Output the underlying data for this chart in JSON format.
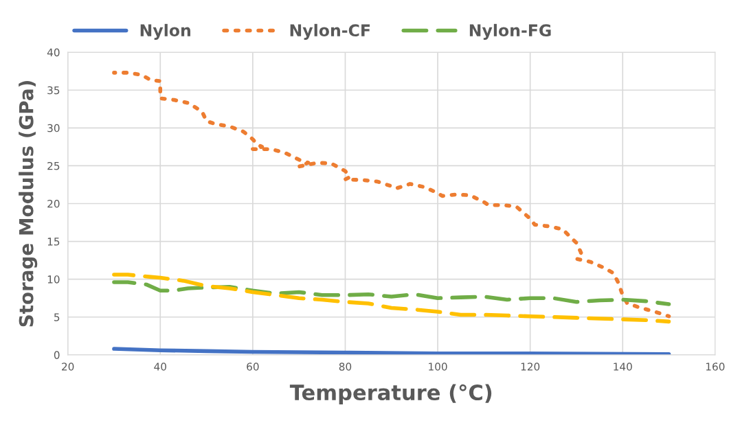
{
  "chart_data": {
    "type": "line",
    "xlabel": "Temperature (°C)",
    "ylabel": "Storage Modulus (GPa)",
    "xlim": [
      20,
      160
    ],
    "xticks": [
      20,
      40,
      60,
      80,
      100,
      120,
      140,
      160
    ],
    "ylim": [
      0,
      40
    ],
    "yticks": [
      0,
      5,
      10,
      15,
      20,
      25,
      30,
      35,
      40
    ],
    "grid": true,
    "legend": "top",
    "marker": "none",
    "series": [
      {
        "name": "Nylon",
        "color": "#4472c4",
        "line_style": "solid",
        "x": [
          30,
          40,
          50,
          60,
          80,
          100,
          120,
          150
        ],
        "values": [
          0.8,
          0.6,
          0.5,
          0.4,
          0.3,
          0.2,
          0.2,
          0.1
        ]
      },
      {
        "name": "Nylon-CF",
        "color": "#ed7d31",
        "line_style": "dotted",
        "x": [
          30,
          33,
          36,
          38,
          40,
          40,
          40,
          43,
          46,
          49,
          50,
          52,
          55,
          58,
          60,
          61,
          62,
          60,
          64,
          67,
          70,
          72,
          70,
          74,
          77,
          80,
          81,
          80,
          84,
          87,
          90,
          91,
          94,
          97,
          100,
          101,
          104,
          107,
          110,
          111,
          114,
          117,
          120,
          121,
          124,
          127,
          130,
          131,
          130,
          133,
          136,
          138,
          139,
          140,
          141,
          144,
          147,
          150
        ],
        "values": [
          37.3,
          37.3,
          37.0,
          36.3,
          36.2,
          34.8,
          33.9,
          33.7,
          33.3,
          32.2,
          30.9,
          30.5,
          30.2,
          29.5,
          28.5,
          27.8,
          27.5,
          27.2,
          27.2,
          26.7,
          25.8,
          25.4,
          24.9,
          25.4,
          25.3,
          24.3,
          23.5,
          23.2,
          23.1,
          22.9,
          22.3,
          22.0,
          22.6,
          22.2,
          21.4,
          21.0,
          21.2,
          21.1,
          20.2,
          19.8,
          19.8,
          19.6,
          18.0,
          17.2,
          17.0,
          16.6,
          14.8,
          13.5,
          12.7,
          12.3,
          11.5,
          10.8,
          9.6,
          7.9,
          6.8,
          6.2,
          5.7,
          5.1
        ]
      },
      {
        "name": "Nylon-FG",
        "color": "#70ad47",
        "line_style": "dashed",
        "x": [
          30,
          33,
          37,
          40,
          43,
          46,
          50,
          55,
          60,
          65,
          70,
          75,
          80,
          85,
          90,
          95,
          100,
          105,
          110,
          115,
          120,
          125,
          130,
          135,
          140,
          145,
          150
        ],
        "values": [
          9.6,
          9.6,
          9.3,
          8.5,
          8.5,
          8.8,
          8.9,
          9.0,
          8.5,
          8.1,
          8.3,
          7.9,
          7.9,
          8.0,
          7.7,
          8.0,
          7.5,
          7.6,
          7.7,
          7.3,
          7.5,
          7.5,
          7.0,
          7.2,
          7.3,
          7.1,
          6.7
        ]
      },
      {
        "color": "#ffc000",
        "line_style": "dashed",
        "x": [
          30,
          33,
          38,
          40,
          45,
          50,
          55,
          60,
          65,
          70,
          75,
          80,
          85,
          90,
          95,
          100,
          105,
          110,
          115,
          120,
          125,
          130,
          135,
          140,
          145,
          150
        ],
        "values": [
          10.6,
          10.6,
          10.3,
          10.2,
          9.8,
          9.1,
          8.8,
          8.3,
          7.9,
          7.5,
          7.3,
          7.0,
          6.8,
          6.2,
          6.0,
          5.7,
          5.3,
          5.3,
          5.2,
          5.1,
          5.0,
          4.9,
          4.8,
          4.7,
          4.6,
          4.4
        ]
      }
    ]
  }
}
